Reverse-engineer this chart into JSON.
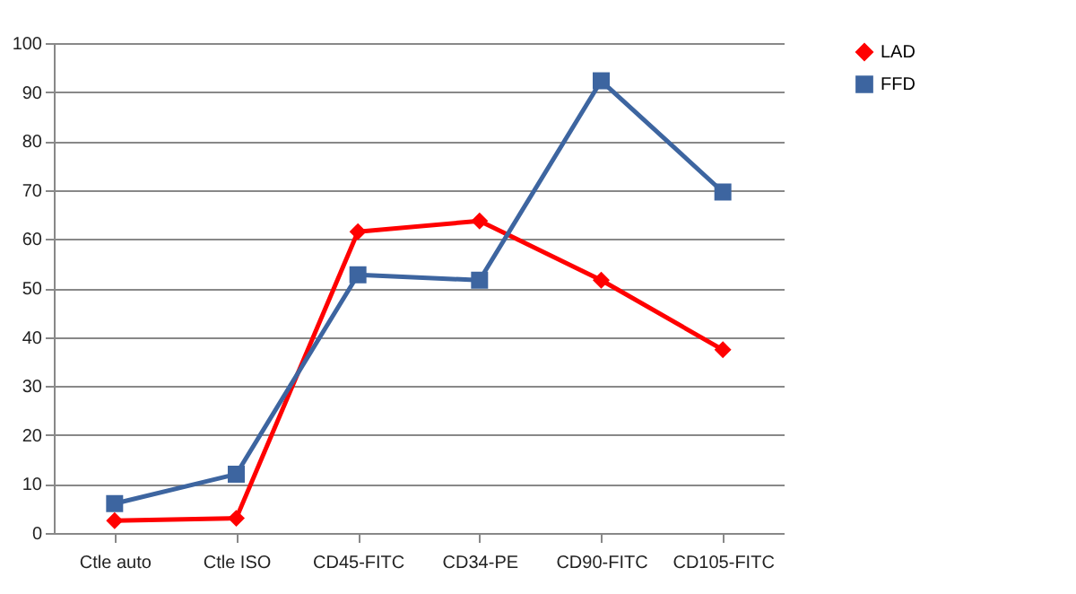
{
  "chart_data": {
    "type": "line",
    "categories": [
      "Ctle auto",
      "Ctle ISO",
      "CD45-FITC",
      "CD34-PE",
      "CD90-FITC",
      "CD105-FITC"
    ],
    "series": [
      {
        "name": "LAD",
        "color": "#ff0000",
        "marker": "diamond",
        "values": [
          2.5,
          3,
          61.5,
          63.7,
          51.6,
          37.4
        ]
      },
      {
        "name": "FFD",
        "color": "#3d65a0",
        "marker": "square",
        "values": [
          6,
          12,
          52.7,
          51.6,
          92.3,
          69.6
        ]
      }
    ],
    "ylim": [
      0,
      100
    ],
    "yticks": [
      0,
      10,
      20,
      30,
      40,
      50,
      60,
      70,
      80,
      90,
      100
    ],
    "grid": "y",
    "legend": "right",
    "line_style": "solid"
  }
}
